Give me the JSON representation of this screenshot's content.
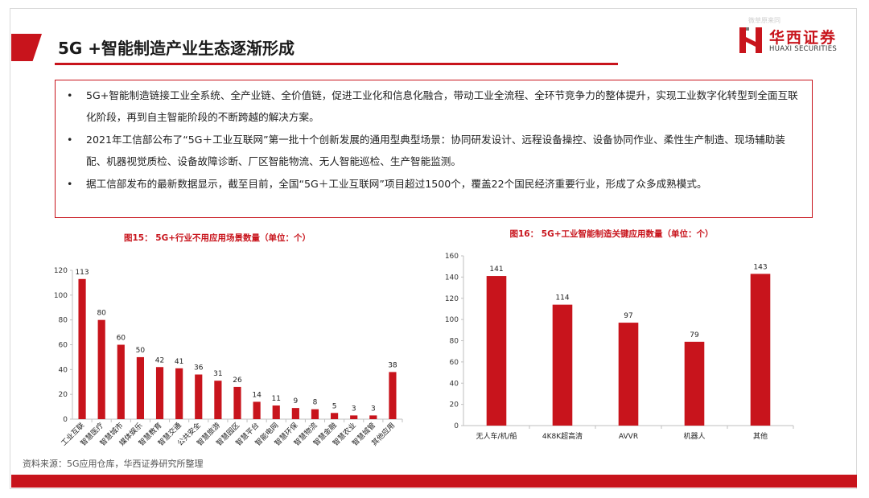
{
  "header": {
    "title": "5G +智能制造产业生态逐渐形成",
    "brand_cn": "华西证券",
    "brand_en": "HUAXI SECURITIES",
    "watermark": "微草原来同"
  },
  "bullets": [
    "5G+智能制造链接工业全系统、全产业链、全价值链，促进工业化和信息化融合，带动工业全流程、全环节竞争力的整体提升，实现工业数字化转型到全面互联化阶段，再到自主智能阶段的不断跨越的解决方案。",
    "2021年工信部公布了“5G＋工业互联网”第一批十个创新发展的通用型典型场景：协同研发设计、远程设备操控、设备协同作业、柔性生产制造、现场辅助装配、机器视觉质检、设备故障诊断、厂区智能物流、无人智能巡检、生产智能监测。",
    "据工信部发布的最新数据显示，截至目前，全国“5G＋工业互联网”项目超过1500个，覆盖22个国民经济重要行业，形成了众多成熟模式。"
  ],
  "bullet_marker": "•",
  "source": "资料来源：5G应用仓库，华西证券研究所整理",
  "colors": {
    "accent": "#c8141c",
    "bar": "#c8141c",
    "axis": "#bfbfbf"
  },
  "chart_data": [
    {
      "type": "bar",
      "title": "图15： 5G+行业不用应用场景数量（单位：个）",
      "categories": [
        "工业互联",
        "智慧医疗",
        "智慧城市",
        "媒体娱乐",
        "智慧教育",
        "智慧交通",
        "公共安全",
        "智慧旅游",
        "智慧园区",
        "智慧平台",
        "智能电网",
        "智慧环保",
        "智慧物流",
        "智慧金融",
        "智慧农业",
        "智慧城管",
        "其他应用"
      ],
      "values": [
        113,
        80,
        60,
        50,
        42,
        41,
        36,
        31,
        26,
        14,
        11,
        9,
        8,
        5,
        3,
        3,
        38
      ],
      "yticks": [
        0,
        20,
        40,
        60,
        80,
        100,
        120
      ],
      "ylim": [
        0,
        120
      ],
      "grid": false
    },
    {
      "type": "bar",
      "title": "图16： 5G+工业智能制造关键应用数量（单位：个）",
      "categories": [
        "无人车/机/船",
        "4K8K超高清",
        "AVVR",
        "机器人",
        "其他"
      ],
      "values": [
        141,
        114,
        97,
        79,
        143
      ],
      "yticks": [
        0,
        20,
        40,
        60,
        80,
        100,
        120,
        140,
        160
      ],
      "ylim": [
        0,
        160
      ],
      "grid": false
    }
  ]
}
